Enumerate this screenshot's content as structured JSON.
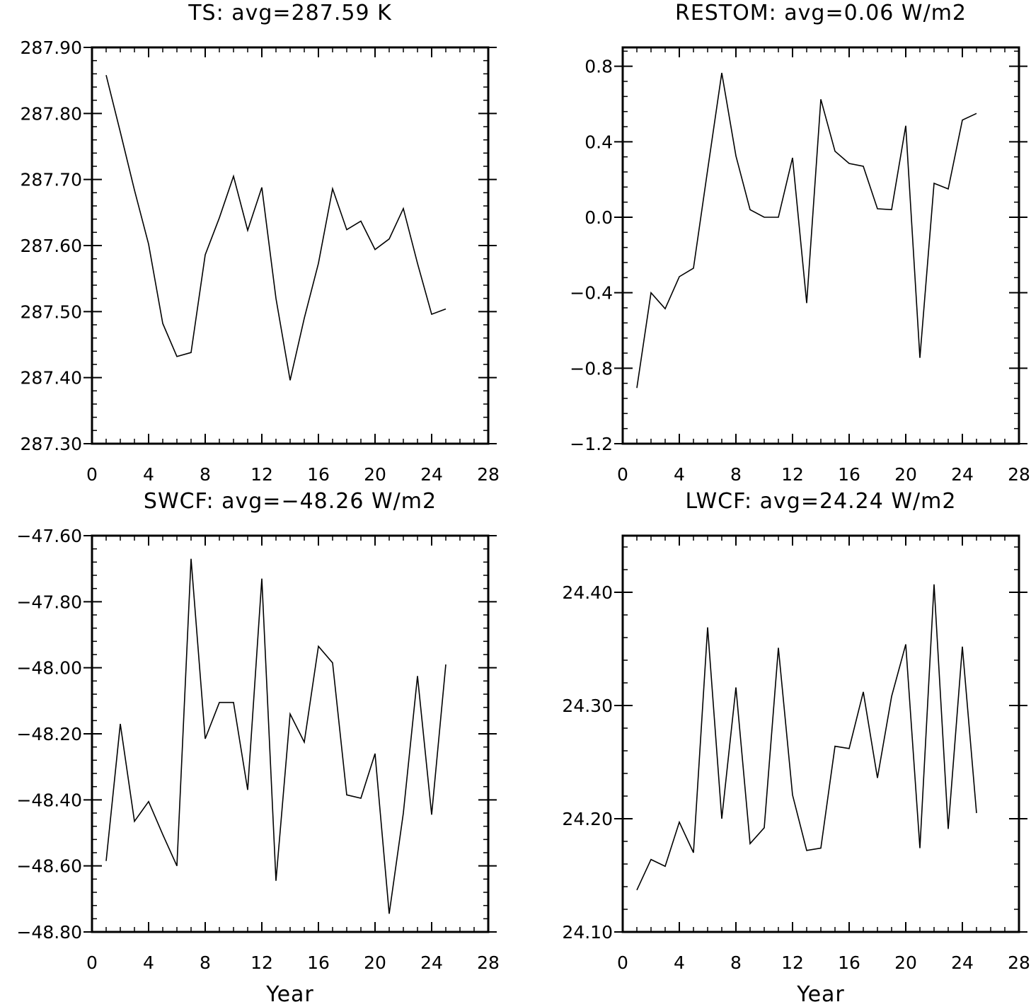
{
  "chart_data": [
    {
      "type": "line",
      "title": "TS: avg=287.59 K",
      "xlabel": "",
      "ylabel": "",
      "xlim": [
        0,
        28
      ],
      "ylim": [
        287.3,
        287.9
      ],
      "xticks": [
        "0",
        "4",
        "8",
        "12",
        "16",
        "20",
        "24",
        "28"
      ],
      "yticks": [
        "287.30",
        "287.40",
        "287.50",
        "287.60",
        "287.70",
        "287.80",
        "287.90"
      ],
      "x": [
        1,
        2,
        3,
        4,
        5,
        6,
        7,
        8,
        9,
        10,
        11,
        12,
        13,
        14,
        15,
        16,
        17,
        18,
        19,
        20,
        21,
        22,
        23,
        24,
        25
      ],
      "y": [
        287.858,
        287.772,
        287.684,
        287.602,
        287.482,
        287.432,
        287.438,
        287.586,
        287.642,
        287.705,
        287.623,
        287.688,
        287.52,
        287.396,
        287.49,
        287.573,
        287.686,
        287.624,
        287.637,
        287.594,
        287.61,
        287.656,
        287.573,
        287.496,
        287.504
      ]
    },
    {
      "type": "line",
      "title": "RESTOM: avg=0.06 W/m2",
      "xlabel": "",
      "ylabel": "",
      "xlim": [
        0,
        28
      ],
      "ylim": [
        -1.2,
        0.9
      ],
      "xticks": [
        "0",
        "4",
        "8",
        "12",
        "16",
        "20",
        "24",
        "28"
      ],
      "yticks": [
        "−1.2",
        "−0.8",
        "−0.4",
        "0.0",
        "0.4",
        "0.8"
      ],
      "x": [
        1,
        2,
        3,
        4,
        5,
        6,
        7,
        8,
        9,
        10,
        11,
        12,
        13,
        14,
        15,
        16,
        17,
        18,
        19,
        20,
        21,
        22,
        23,
        24,
        25
      ],
      "y": [
        -0.905,
        -0.4,
        -0.485,
        -0.315,
        -0.27,
        0.25,
        0.765,
        0.325,
        0.04,
        0.0,
        0.0,
        0.315,
        -0.455,
        0.625,
        0.35,
        0.285,
        0.27,
        0.045,
        0.04,
        0.485,
        -0.745,
        0.18,
        0.15,
        0.515,
        0.55
      ]
    },
    {
      "type": "line",
      "title": "SWCF: avg=−48.26 W/m2",
      "xlabel": "Year",
      "ylabel": "",
      "xlim": [
        0,
        28
      ],
      "ylim": [
        -48.8,
        -47.6
      ],
      "xticks": [
        "0",
        "4",
        "8",
        "12",
        "16",
        "20",
        "24",
        "28"
      ],
      "yticks": [
        "−48.80",
        "−48.60",
        "−48.40",
        "−48.20",
        "−48.00",
        "−47.80",
        "−47.60"
      ],
      "x": [
        1,
        2,
        3,
        4,
        5,
        6,
        7,
        8,
        9,
        10,
        11,
        12,
        13,
        14,
        15,
        16,
        17,
        18,
        19,
        20,
        21,
        22,
        23,
        24,
        25
      ],
      "y": [
        -48.585,
        -48.17,
        -48.465,
        -48.405,
        -48.505,
        -48.6,
        -47.67,
        -48.215,
        -48.105,
        -48.105,
        -48.37,
        -47.73,
        -48.645,
        -48.14,
        -48.225,
        -47.935,
        -47.985,
        -48.385,
        -48.395,
        -48.26,
        -48.745,
        -48.44,
        -48.025,
        -48.445,
        -47.99
      ]
    },
    {
      "type": "line",
      "title": "LWCF: avg=24.24 W/m2",
      "xlabel": "Year",
      "ylabel": "",
      "xlim": [
        0,
        28
      ],
      "ylim": [
        24.1,
        24.45
      ],
      "xticks": [
        "0",
        "4",
        "8",
        "12",
        "16",
        "20",
        "24",
        "28"
      ],
      "yticks": [
        "24.10",
        "24.20",
        "24.30",
        "24.40"
      ],
      "x": [
        1,
        2,
        3,
        4,
        5,
        6,
        7,
        8,
        9,
        10,
        11,
        12,
        13,
        14,
        15,
        16,
        17,
        18,
        19,
        20,
        21,
        22,
        23,
        24,
        25
      ],
      "y": [
        24.137,
        24.164,
        24.158,
        24.197,
        24.17,
        24.369,
        24.2,
        24.316,
        24.178,
        24.192,
        24.351,
        24.221,
        24.172,
        24.174,
        24.264,
        24.262,
        24.312,
        24.236,
        24.308,
        24.354,
        24.174,
        24.407,
        24.191,
        24.352,
        24.205
      ]
    }
  ]
}
